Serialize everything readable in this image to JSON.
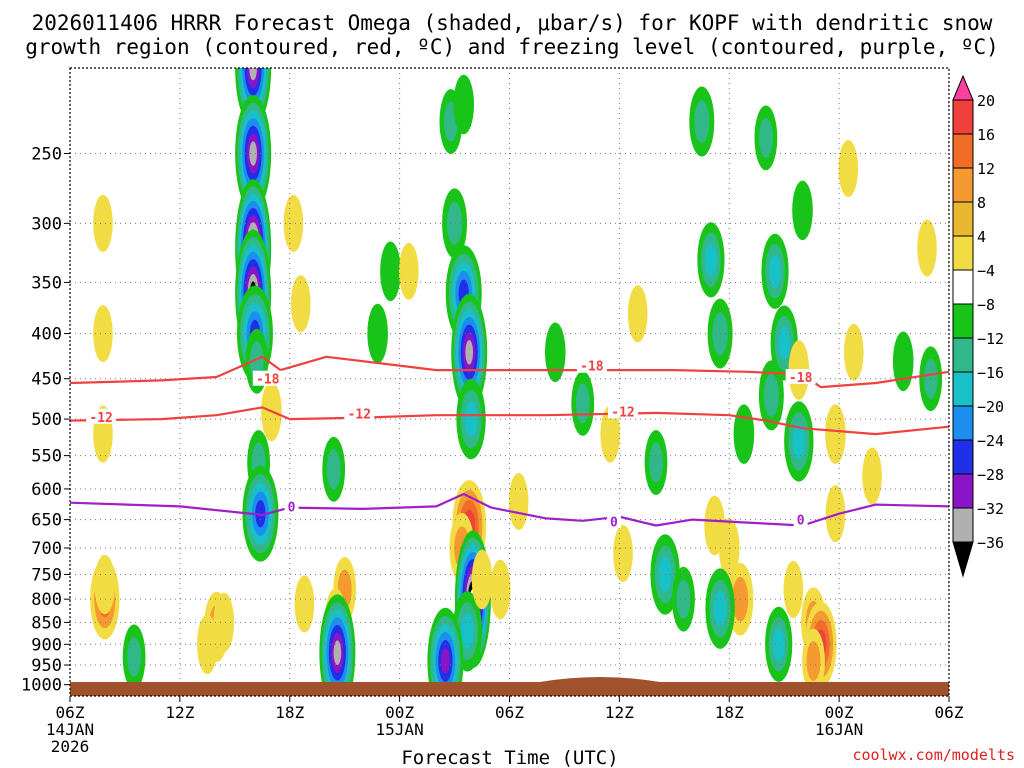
{
  "chart_data": {
    "type": "heatmap",
    "title_line1": "2026011406 HRRR Forecast Omega (shaded, μbar/s) for KOPF with dendritic snow",
    "title_line2": "growth region (contoured, red, ºC) and freezing level (contoured, purple, ºC)",
    "xlabel": "Forecast Time (UTC)",
    "ylabel": "",
    "credit": "coolwx.com/modelts",
    "y_axis": {
      "scale": "log-pressure",
      "ylim": [
        1030,
        200
      ],
      "ticks": [
        250,
        300,
        350,
        400,
        450,
        500,
        550,
        600,
        650,
        700,
        750,
        800,
        850,
        900,
        950,
        1000
      ]
    },
    "x_axis": {
      "xlim": [
        0,
        48
      ],
      "ticks": [
        {
          "hour": 0,
          "lines": [
            "06Z",
            "14JAN",
            "2026"
          ]
        },
        {
          "hour": 6,
          "lines": [
            "12Z"
          ]
        },
        {
          "hour": 12,
          "lines": [
            "18Z"
          ]
        },
        {
          "hour": 18,
          "lines": [
            "00Z",
            "15JAN"
          ]
        },
        {
          "hour": 24,
          "lines": [
            "06Z"
          ]
        },
        {
          "hour": 30,
          "lines": [
            "12Z"
          ]
        },
        {
          "hour": 36,
          "lines": [
            "18Z"
          ]
        },
        {
          "hour": 42,
          "lines": [
            "00Z",
            "16JAN"
          ]
        },
        {
          "hour": 48,
          "lines": [
            "06Z"
          ]
        }
      ]
    },
    "grid": true,
    "colorbar": {
      "labels": [
        "20",
        "16",
        "12",
        "8",
        "4",
        "−4",
        "−8",
        "−12",
        "−16",
        "−20",
        "−24",
        "−28",
        "−32",
        "−36"
      ],
      "colors": [
        "#ff3fa0",
        "#f0403c",
        "#f06c28",
        "#f59a30",
        "#e8b830",
        "#f2dc44",
        "#ffffff",
        "#18c418",
        "#30b888",
        "#18c0c8",
        "#1c8ef0",
        "#2030e8",
        "#8a14c8",
        "#b0b0b0",
        "#000000"
      ]
    },
    "omega_cells": [
      {
        "t": 1.8,
        "p": 400,
        "v": 5
      },
      {
        "t": 1.8,
        "p": 300,
        "v": 5
      },
      {
        "t": 1.8,
        "p": 520,
        "v": 5
      },
      {
        "t": 1.9,
        "p": 800,
        "v": 14
      },
      {
        "t": 1.9,
        "p": 770,
        "v": 6
      },
      {
        "t": 3.5,
        "p": 930,
        "v": -8
      },
      {
        "t": 8.0,
        "p": 860,
        "v": 10
      },
      {
        "t": 7.5,
        "p": 900,
        "v": 6
      },
      {
        "t": 8.4,
        "p": 850,
        "v": 6
      },
      {
        "t": 10.0,
        "p": 200,
        "v": -28
      },
      {
        "t": 10.0,
        "p": 250,
        "v": -28
      },
      {
        "t": 10.0,
        "p": 320,
        "v": -36
      },
      {
        "t": 10.0,
        "p": 360,
        "v": -32
      },
      {
        "t": 10.1,
        "p": 400,
        "v": -20
      },
      {
        "t": 10.2,
        "p": 430,
        "v": -8
      },
      {
        "t": 10.3,
        "p": 560,
        "v": -8
      },
      {
        "t": 10.4,
        "p": 640,
        "v": -20
      },
      {
        "t": 12.2,
        "p": 300,
        "v": 5
      },
      {
        "t": 12.6,
        "p": 370,
        "v": 5
      },
      {
        "t": 11.0,
        "p": 490,
        "v": 6
      },
      {
        "t": 15.0,
        "p": 780,
        "v": 8
      },
      {
        "t": 14.5,
        "p": 840,
        "v": 6
      },
      {
        "t": 14.6,
        "p": 920,
        "v": -28
      },
      {
        "t": 14.4,
        "p": 570,
        "v": -8
      },
      {
        "t": 12.8,
        "p": 810,
        "v": 5
      },
      {
        "t": 16.8,
        "p": 400,
        "v": -6
      },
      {
        "t": 17.5,
        "p": 340,
        "v": -6
      },
      {
        "t": 18.5,
        "p": 340,
        "v": 5
      },
      {
        "t": 21.0,
        "p": 300,
        "v": -10
      },
      {
        "t": 21.5,
        "p": 360,
        "v": -20
      },
      {
        "t": 21.8,
        "p": 420,
        "v": -28
      },
      {
        "t": 21.9,
        "p": 500,
        "v": -14
      },
      {
        "t": 20.8,
        "p": 230,
        "v": -8
      },
      {
        "t": 21.5,
        "p": 220,
        "v": -6
      },
      {
        "t": 21.8,
        "p": 660,
        "v": 18
      },
      {
        "t": 21.4,
        "p": 700,
        "v": 10
      },
      {
        "t": 22.0,
        "p": 800,
        "v": -36
      },
      {
        "t": 21.7,
        "p": 870,
        "v": -14
      },
      {
        "t": 22.5,
        "p": 760,
        "v": 6
      },
      {
        "t": 20.5,
        "p": 940,
        "v": -24
      },
      {
        "t": 23.5,
        "p": 780,
        "v": 6
      },
      {
        "t": 24.5,
        "p": 620,
        "v": 5
      },
      {
        "t": 28.0,
        "p": 480,
        "v": -8
      },
      {
        "t": 29.5,
        "p": 520,
        "v": 5
      },
      {
        "t": 26.5,
        "p": 420,
        "v": -6
      },
      {
        "t": 31.0,
        "p": 380,
        "v": 5
      },
      {
        "t": 32.0,
        "p": 560,
        "v": -8
      },
      {
        "t": 32.5,
        "p": 750,
        "v": -14
      },
      {
        "t": 33.5,
        "p": 800,
        "v": -8
      },
      {
        "t": 30.2,
        "p": 710,
        "v": 5
      },
      {
        "t": 34.5,
        "p": 230,
        "v": -10
      },
      {
        "t": 35.0,
        "p": 330,
        "v": -12
      },
      {
        "t": 35.5,
        "p": 400,
        "v": -10
      },
      {
        "t": 35.2,
        "p": 660,
        "v": 6
      },
      {
        "t": 36.0,
        "p": 700,
        "v": 6
      },
      {
        "t": 36.6,
        "p": 800,
        "v": 11
      },
      {
        "t": 35.5,
        "p": 820,
        "v": -14
      },
      {
        "t": 36.8,
        "p": 520,
        "v": -6
      },
      {
        "t": 38.0,
        "p": 240,
        "v": -8
      },
      {
        "t": 38.5,
        "p": 340,
        "v": -12
      },
      {
        "t": 39.0,
        "p": 410,
        "v": -12
      },
      {
        "t": 38.3,
        "p": 470,
        "v": -10
      },
      {
        "t": 39.8,
        "p": 440,
        "v": 6
      },
      {
        "t": 39.8,
        "p": 530,
        "v": -14
      },
      {
        "t": 40.0,
        "p": 290,
        "v": -6
      },
      {
        "t": 39.5,
        "p": 780,
        "v": 5
      },
      {
        "t": 40.6,
        "p": 850,
        "v": 10
      },
      {
        "t": 41.0,
        "p": 900,
        "v": 16
      },
      {
        "t": 40.6,
        "p": 940,
        "v": 8
      },
      {
        "t": 38.7,
        "p": 900,
        "v": -12
      },
      {
        "t": 41.8,
        "p": 520,
        "v": 6
      },
      {
        "t": 41.8,
        "p": 640,
        "v": 5
      },
      {
        "t": 42.5,
        "p": 260,
        "v": 5
      },
      {
        "t": 42.8,
        "p": 420,
        "v": 5
      },
      {
        "t": 43.8,
        "p": 580,
        "v": 5
      },
      {
        "t": 46.8,
        "p": 320,
        "v": 5
      },
      {
        "t": 45.5,
        "p": 430,
        "v": -6
      },
      {
        "t": 47.0,
        "p": 450,
        "v": -8
      }
    ],
    "dgz_lines": [
      {
        "label": "-18",
        "points": [
          [
            0,
            455
          ],
          [
            5,
            452
          ],
          [
            8,
            448
          ],
          [
            10.5,
            425
          ],
          [
            11.5,
            440
          ],
          [
            14,
            425
          ],
          [
            20,
            440
          ],
          [
            26,
            440
          ],
          [
            33,
            440
          ],
          [
            37,
            442
          ],
          [
            40,
            445
          ],
          [
            41,
            460
          ],
          [
            44,
            455
          ],
          [
            48,
            442
          ]
        ],
        "label_at": [
          [
            10.8,
            450
          ],
          [
            28.5,
            435
          ],
          [
            39.9,
            448
          ]
        ]
      },
      {
        "label": "-12",
        "points": [
          [
            0,
            502
          ],
          [
            5,
            500
          ],
          [
            8,
            495
          ],
          [
            10.5,
            485
          ],
          [
            12,
            500
          ],
          [
            16,
            498
          ],
          [
            20,
            495
          ],
          [
            26,
            495
          ],
          [
            32,
            492
          ],
          [
            36,
            495
          ],
          [
            38,
            502
          ],
          [
            40,
            512
          ],
          [
            44,
            520
          ],
          [
            48,
            510
          ]
        ],
        "label_at": [
          [
            1.7,
            497
          ],
          [
            15.8,
            493
          ],
          [
            30.2,
            490
          ]
        ]
      }
    ],
    "freezing_level": {
      "label": "0",
      "points": [
        [
          0,
          622
        ],
        [
          6,
          628
        ],
        [
          10.5,
          642
        ],
        [
          12,
          630
        ],
        [
          16,
          632
        ],
        [
          20,
          628
        ],
        [
          21.5,
          608
        ],
        [
          23,
          630
        ],
        [
          26,
          648
        ],
        [
          28,
          652
        ],
        [
          30,
          645
        ],
        [
          32,
          660
        ],
        [
          34,
          650
        ],
        [
          37,
          655
        ],
        [
          40,
          660
        ],
        [
          42,
          640
        ],
        [
          44,
          625
        ],
        [
          48,
          628
        ]
      ],
      "label_at": [
        [
          12.1,
          628
        ],
        [
          29.7,
          653
        ],
        [
          39.9,
          650
        ]
      ]
    }
  }
}
